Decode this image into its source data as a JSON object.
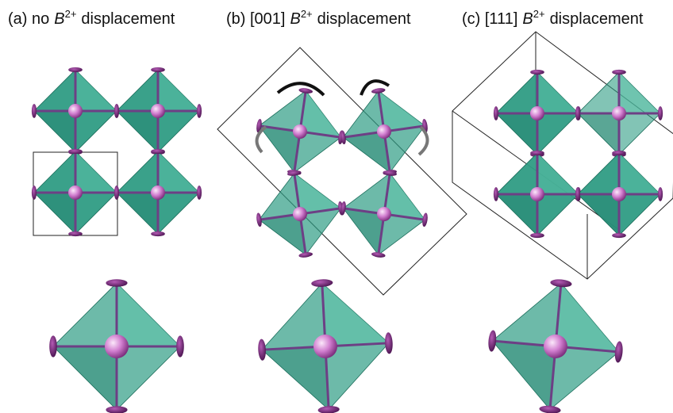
{
  "panels": [
    {
      "label": "(a) no",
      "symbol": "B",
      "charge": "2+",
      "suffix": "displacement"
    },
    {
      "label": "(b) [001]",
      "symbol": "B",
      "charge": "2+",
      "suffix": "displacement"
    },
    {
      "label": "(c) [111]",
      "symbol": "B",
      "charge": "2+",
      "suffix": "displacement"
    }
  ]
}
